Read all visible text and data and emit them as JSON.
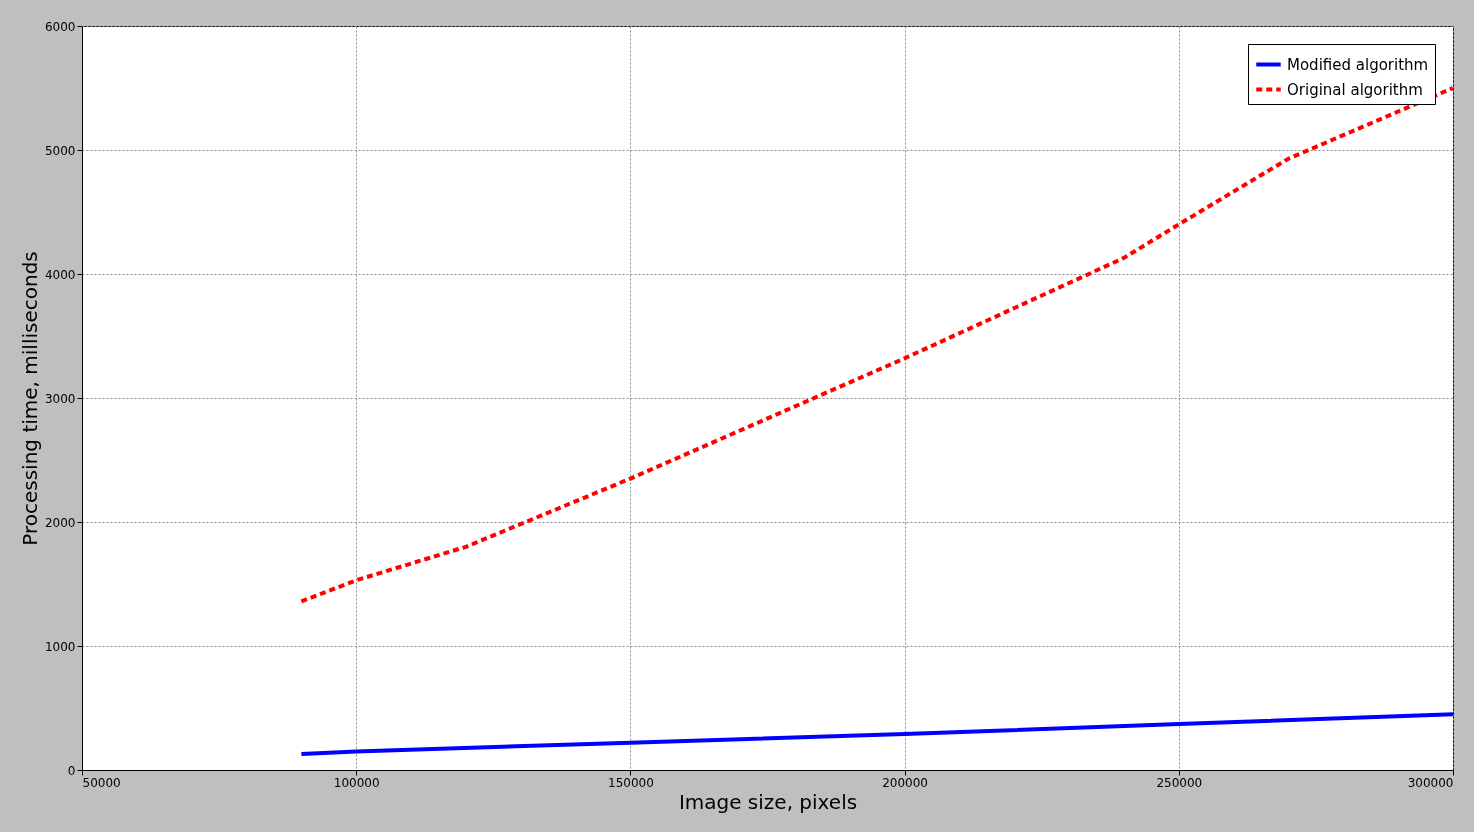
{
  "chart_data": {
    "type": "line",
    "xlabel": "Image size, pixels",
    "ylabel": "Processing time, milliseconds",
    "xlim": [
      50000,
      300000
    ],
    "xticks": [
      50000,
      100000,
      150000,
      200000,
      250000,
      300000
    ],
    "ylim": [
      0,
      6000
    ],
    "yticks": [
      0,
      1000,
      2000,
      3000,
      4000,
      5000,
      6000
    ],
    "grid": true,
    "legend": "top right",
    "series": [
      {
        "name": "Modified algorithm",
        "color": "#0000ff",
        "line_style": "solid",
        "x": [
          90000,
          100000,
          150000,
          200000,
          250000,
          300000
        ],
        "values": [
          130,
          150,
          220,
          290,
          370,
          450
        ]
      },
      {
        "name": "Original algorithm",
        "color": "#ff0000",
        "line_style": "dashed",
        "x": [
          90000,
          100000,
          120000,
          150000,
          200000,
          240000,
          250000,
          270000,
          300000
        ],
        "values": [
          1360,
          1530,
          1800,
          2350,
          3320,
          4130,
          4400,
          4930,
          5500
        ]
      }
    ]
  }
}
